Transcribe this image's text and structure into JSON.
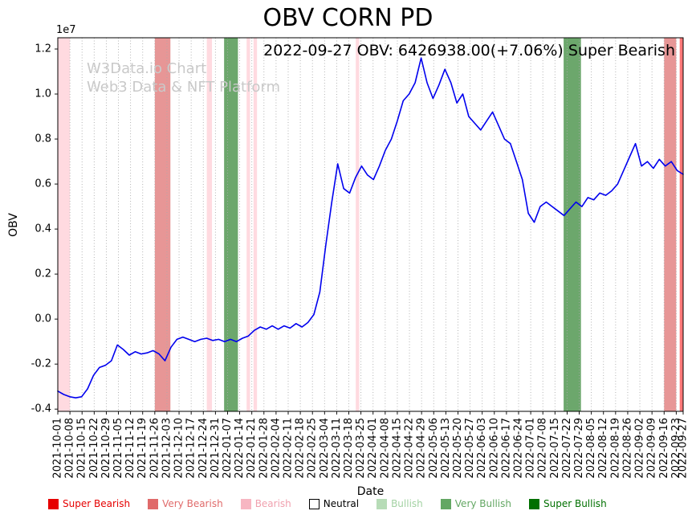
{
  "annotation": "2022-09-27 OBV: 6426938.00(+7.06%) Super Bearish",
  "watermark": {
    "line1": "W3Data.io Chart",
    "line2": "Web3 Data & NFT Platform"
  },
  "chart_data": {
    "type": "line",
    "title": "OBV CORN PD",
    "xlabel": "Date",
    "ylabel": "OBV",
    "y_offset_label": "1e7",
    "y_unit": 10000000,
    "ylim": [
      -0.41,
      1.25
    ],
    "y_ticks": [
      -0.4,
      -0.2,
      0.0,
      0.2,
      0.4,
      0.6,
      0.8,
      1.0,
      1.2
    ],
    "x_start": "2021-10-01",
    "x_end": "2022-09-27",
    "x_ticks": [
      "2021-10-01",
      "2021-10-08",
      "2021-10-15",
      "2021-10-22",
      "2021-10-29",
      "2021-11-05",
      "2021-11-12",
      "2021-11-19",
      "2021-11-26",
      "2021-12-03",
      "2021-12-10",
      "2021-12-17",
      "2021-12-24",
      "2021-12-31",
      "2022-01-07",
      "2022-01-14",
      "2022-01-21",
      "2022-01-28",
      "2022-02-04",
      "2022-02-11",
      "2022-02-18",
      "2022-02-25",
      "2022-03-04",
      "2022-03-11",
      "2022-03-18",
      "2022-03-25",
      "2022-04-01",
      "2022-04-08",
      "2022-04-15",
      "2022-04-22",
      "2022-04-29",
      "2022-05-06",
      "2022-05-13",
      "2022-05-20",
      "2022-05-27",
      "2022-06-03",
      "2022-06-10",
      "2022-06-17",
      "2022-06-24",
      "2022-07-01",
      "2022-07-08",
      "2022-07-15",
      "2022-07-22",
      "2022-07-29",
      "2022-08-05",
      "2022-08-12",
      "2022-08-19",
      "2022-08-26",
      "2022-09-02",
      "2022-09-09",
      "2022-09-16",
      "2022-09-23",
      "2022-09-27"
    ],
    "grid": {
      "axis": "x",
      "style": "dotted",
      "color": "#ababab"
    },
    "series": [
      {
        "name": "OBV",
        "color": "#0000ee",
        "x_start": "2021-10-01",
        "x_end": "2022-09-27",
        "values": [
          -0.32,
          -0.335,
          -0.345,
          -0.35,
          -0.345,
          -0.31,
          -0.25,
          -0.215,
          -0.205,
          -0.185,
          -0.115,
          -0.135,
          -0.16,
          -0.145,
          -0.155,
          -0.15,
          -0.14,
          -0.155,
          -0.185,
          -0.125,
          -0.09,
          -0.08,
          -0.09,
          -0.1,
          -0.09,
          -0.085,
          -0.095,
          -0.09,
          -0.1,
          -0.09,
          -0.1,
          -0.085,
          -0.075,
          -0.05,
          -0.035,
          -0.045,
          -0.03,
          -0.045,
          -0.03,
          -0.04,
          -0.02,
          -0.035,
          -0.015,
          0.02,
          0.12,
          0.33,
          0.52,
          0.69,
          0.58,
          0.56,
          0.63,
          0.68,
          0.64,
          0.62,
          0.68,
          0.75,
          0.8,
          0.88,
          0.97,
          1.0,
          1.05,
          1.16,
          1.05,
          0.98,
          1.04,
          1.11,
          1.05,
          0.96,
          1.0,
          0.9,
          0.87,
          0.84,
          0.88,
          0.92,
          0.86,
          0.8,
          0.78,
          0.7,
          0.62,
          0.47,
          0.43,
          0.5,
          0.52,
          0.5,
          0.48,
          0.46,
          0.49,
          0.52,
          0.5,
          0.54,
          0.53,
          0.56,
          0.55,
          0.57,
          0.6,
          0.66,
          0.72,
          0.78,
          0.68,
          0.7,
          0.67,
          0.71,
          0.68,
          0.7,
          0.66,
          0.643
        ]
      }
    ],
    "last_point": {
      "date": "2022-09-27",
      "obv": 6426938.0,
      "change_pct": "+7.06%",
      "signal": "Super Bearish"
    },
    "bands": [
      {
        "start": "2021-10-01",
        "end": "2021-10-08",
        "type": "bearish"
      },
      {
        "start": "2021-11-26",
        "end": "2021-12-05",
        "type": "very_bearish"
      },
      {
        "start": "2021-12-26",
        "end": "2021-12-29",
        "type": "bearish"
      },
      {
        "start": "2022-01-05",
        "end": "2022-01-13",
        "type": "very_bullish"
      },
      {
        "start": "2022-01-18",
        "end": "2022-01-20",
        "type": "bearish"
      },
      {
        "start": "2022-01-22",
        "end": "2022-01-24",
        "type": "bearish"
      },
      {
        "start": "2022-03-22",
        "end": "2022-03-24",
        "type": "bearish"
      },
      {
        "start": "2022-07-20",
        "end": "2022-07-30",
        "type": "very_bullish"
      },
      {
        "start": "2022-09-16",
        "end": "2022-09-23",
        "type": "very_bearish"
      },
      {
        "start": "2022-09-25",
        "end": "2022-09-27",
        "type": "super_bearish"
      }
    ],
    "band_colors": {
      "super_bearish": "rgba(255,30,30,0.6)",
      "very_bearish": "rgba(215,80,80,0.6)",
      "bearish": "rgba(255,182,193,0.5)",
      "neutral": "rgba(255,255,255,0)",
      "bullish": "rgba(170,215,170,0.6)",
      "very_bullish": "rgba(45,130,45,0.7)",
      "super_bullish": "rgba(0,100,0,0.85)"
    }
  },
  "legend": [
    {
      "label": "Super Bearish",
      "color": "#e60000",
      "text_color": "#e60000"
    },
    {
      "label": "Very Bearish",
      "color": "#e06a6a",
      "text_color": "#e06a6a"
    },
    {
      "label": "Bearish",
      "color": "#f7b6c2",
      "text_color": "#f0a0ae"
    },
    {
      "label": "Neutral",
      "color": "#ffffff",
      "text_color": "#000000",
      "border": "#000000"
    },
    {
      "label": "Bullish",
      "color": "#b7dcb7",
      "text_color": "#a3d2a3"
    },
    {
      "label": "Very Bullish",
      "color": "#63a763",
      "text_color": "#63a763"
    },
    {
      "label": "Super Bullish",
      "color": "#007000",
      "text_color": "#007000"
    }
  ]
}
